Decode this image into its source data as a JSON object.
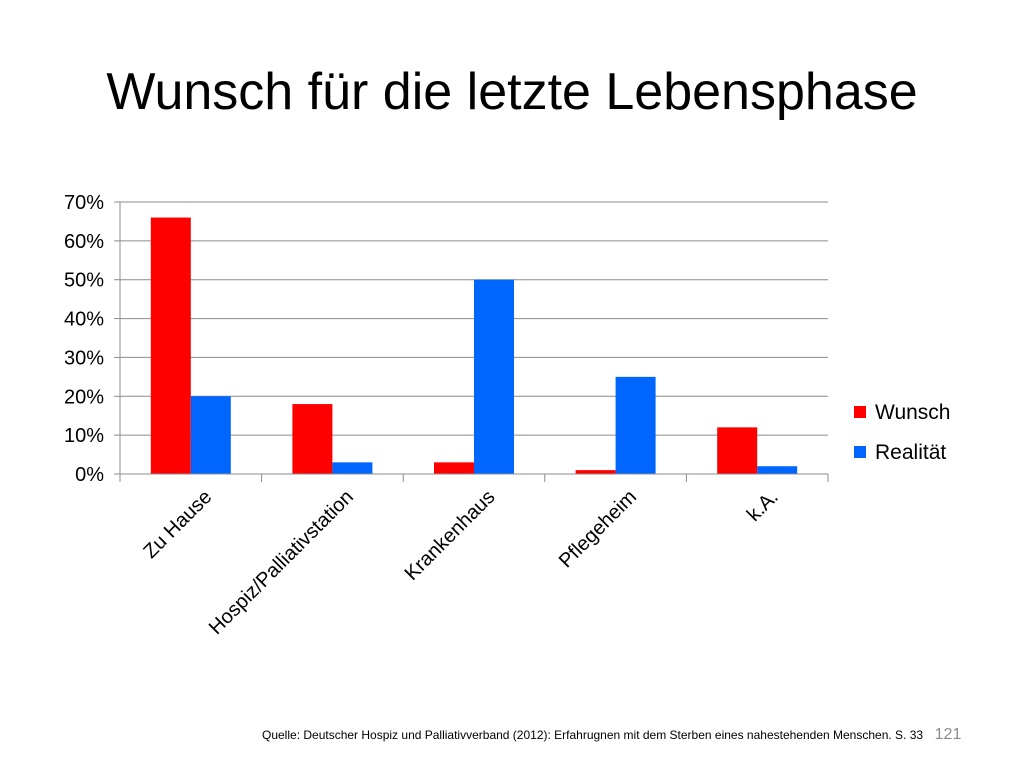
{
  "slide": {
    "title": "Wunsch für die letzte Lebensphase",
    "source": "Quelle: Deutscher Hospiz und Palliativverband (2012): Erfahrugnen mit dem Sterben eines nahestehenden Menschen. S. 33",
    "page_number": "121"
  },
  "chart_data": {
    "type": "bar",
    "categories": [
      "Zu Hause",
      "Hospiz/Palliativstation",
      "Krankenhaus",
      "Pflegeheim",
      "k.A."
    ],
    "series": [
      {
        "name": "Wunsch",
        "color": "#ff0000",
        "values": [
          0.66,
          0.18,
          0.03,
          0.01,
          0.12
        ]
      },
      {
        "name": "Realität",
        "color": "#0066ff",
        "values": [
          0.2,
          0.03,
          0.5,
          0.25,
          0.02
        ]
      }
    ],
    "ylim": [
      0,
      0.7
    ],
    "yticks": [
      0,
      0.1,
      0.2,
      0.3,
      0.4,
      0.5,
      0.6,
      0.7
    ],
    "ytick_labels": [
      "0%",
      "10%",
      "20%",
      "30%",
      "40%",
      "50%",
      "60%",
      "70%"
    ],
    "grid": true,
    "legend_position": "right"
  }
}
